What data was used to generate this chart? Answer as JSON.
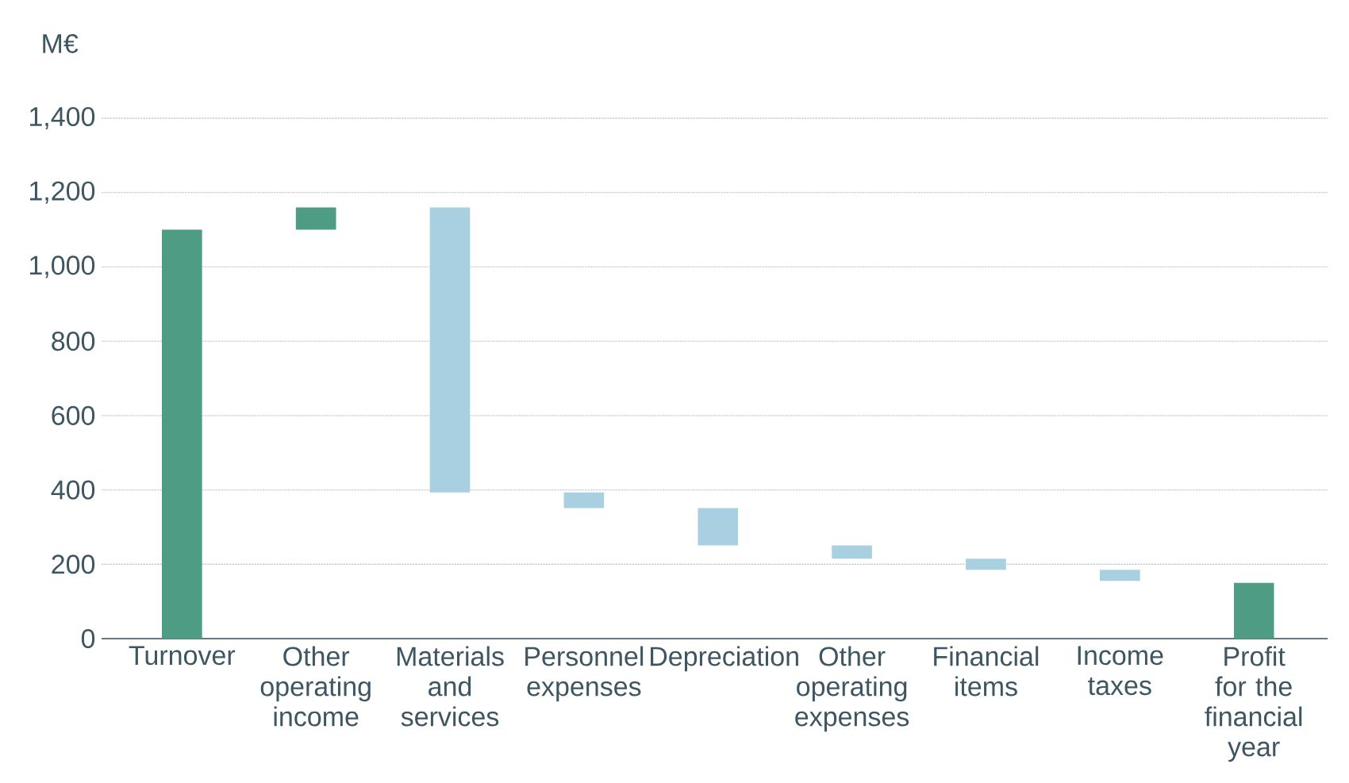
{
  "chart_data": {
    "type": "bar",
    "ylabel": "M€",
    "categories": [
      "Turnover",
      "Other operating income",
      "Materials and services",
      "Personnel expenses",
      "Depreciation",
      "Other operating expenses",
      "Financial items",
      "Income taxes",
      "Profit for the financial year"
    ],
    "base": [
      0,
      1100,
      1160,
      393,
      351,
      251,
      215,
      185,
      0
    ],
    "values": [
      1100,
      60,
      -767,
      -42,
      -100,
      -36,
      -30,
      -30,
      150
    ],
    "colors": [
      "#4e9c84",
      "#4e9c84",
      "#a8d0e0",
      "#a8d0e0",
      "#a8d0e0",
      "#a8d0e0",
      "#a8d0e0",
      "#a8d0e0",
      "#4e9c84"
    ],
    "ylim": [
      0,
      1400
    ],
    "yticks": [
      0,
      200,
      400,
      600,
      800,
      {
        "value": 1000,
        "label": "1,000"
      },
      {
        "value": 1200,
        "label": "1,200"
      },
      {
        "value": 1400,
        "label": "1,400"
      }
    ],
    "grid": "y"
  }
}
